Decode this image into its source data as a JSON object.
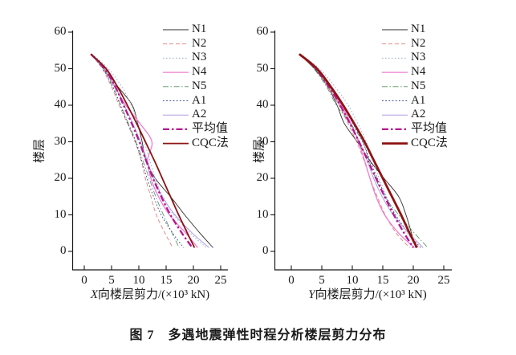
{
  "figure": {
    "caption": "图 7　多遇地震弹性时程分析楼层剪力分布"
  },
  "colors": {
    "text": "#1a1a1a",
    "axis": "#1a1a1a",
    "background": "#ffffff",
    "average_magenta": "#b5188f",
    "cqc_dark_red": "#8f1212"
  },
  "legend": {
    "position": "top-right-inside",
    "entries": [
      {
        "label": "N1",
        "color": "#2e2e2e",
        "width": 0.9,
        "dash": ""
      },
      {
        "label": "N2",
        "color": "#e2807f",
        "width": 0.9,
        "dash": "5,3"
      },
      {
        "label": "N3",
        "color": "#9db9d8",
        "width": 1.1,
        "dash": "1.6,2.4"
      },
      {
        "label": "N4",
        "color": "#ee7fd4",
        "width": 1.3,
        "dash": ""
      },
      {
        "label": "N5",
        "color": "#4d8f5c",
        "width": 0.8,
        "dash": "7,2.5,1.5,2.5"
      },
      {
        "label": "A1",
        "color": "#3c4a9d",
        "width": 0.9,
        "dash": "1.8,2.4"
      },
      {
        "label": "A2",
        "color": "#b49be0",
        "width": 1.0,
        "dash": ""
      },
      {
        "label": "平均值",
        "color": "#b5188f",
        "width": 2.3,
        "dash": "8,3,2.5,3"
      },
      {
        "label": "CQC法",
        "color": "#8f1212",
        "width": 2.0,
        "dash": ""
      }
    ]
  },
  "chart_data": [
    {
      "type": "line",
      "title": "",
      "xlabel_parts": {
        "italic": "X",
        "rest": "向楼层剪力/(×10³ kN)"
      },
      "ylabel": "楼层",
      "xlim": [
        0,
        25
      ],
      "ylim": [
        0,
        60
      ],
      "xticks": [
        "0",
        "5",
        "10",
        "15",
        "20",
        "25"
      ],
      "xtick_values": [
        0,
        5,
        10,
        15,
        20,
        25
      ],
      "yticks": [
        "0",
        "10",
        "20",
        "30",
        "40",
        "50",
        "60"
      ],
      "ytick_values": [
        0,
        10,
        20,
        30,
        40,
        50,
        60
      ],
      "grid": false,
      "floors": [
        54,
        50,
        45,
        40,
        35,
        30,
        25,
        20,
        15,
        10,
        5,
        1
      ],
      "width_override": {
        "CQC法": 1.8
      },
      "series": [
        {
          "name": "N1",
          "values": [
            1.2,
            3.6,
            6.2,
            8.8,
            9.8,
            10.6,
            11.3,
            13.0,
            15.8,
            18.4,
            21.2,
            23.6
          ]
        },
        {
          "name": "N2",
          "values": [
            1.2,
            3.3,
            5.0,
            6.4,
            7.9,
            9.3,
            10.4,
            11.2,
            12.2,
            13.2,
            14.8,
            16.2
          ]
        },
        {
          "name": "N3",
          "values": [
            1.4,
            4.4,
            6.9,
            8.6,
            9.9,
            11.0,
            12.0,
            13.0,
            14.4,
            16.4,
            19.4,
            22.4
          ]
        },
        {
          "name": "N4",
          "values": [
            1.2,
            3.7,
            5.6,
            7.6,
            10.2,
            12.4,
            11.6,
            12.2,
            13.6,
            15.6,
            18.6,
            20.8
          ]
        },
        {
          "name": "N5",
          "values": [
            1.2,
            3.5,
            5.3,
            6.7,
            8.1,
            9.5,
            10.7,
            11.9,
            13.1,
            14.5,
            16.1,
            17.4
          ]
        },
        {
          "name": "A1",
          "values": [
            1.2,
            3.4,
            5.2,
            6.6,
            8.0,
            9.4,
            10.5,
            11.5,
            12.7,
            14.1,
            16.2,
            18.2
          ]
        },
        {
          "name": "A2",
          "values": [
            1.2,
            3.7,
            5.7,
            7.3,
            8.9,
            10.3,
            11.5,
            12.7,
            14.3,
            16.6,
            19.8,
            22.9
          ]
        },
        {
          "name": "平均值",
          "values": [
            1.2,
            3.7,
            5.7,
            7.2,
            8.7,
            10.1,
            11.3,
            12.6,
            14.1,
            15.8,
            17.9,
            19.8
          ]
        },
        {
          "name": "CQC法",
          "values": [
            1.2,
            4.0,
            6.1,
            7.9,
            9.6,
            11.2,
            12.8,
            14.3,
            15.8,
            17.3,
            18.9,
            20.2
          ]
        }
      ]
    },
    {
      "type": "line",
      "title": "",
      "xlabel_parts": {
        "italic": "Y",
        "rest": "向楼层剪力/(×10³ kN)"
      },
      "ylabel": "楼层",
      "xlim": [
        0,
        25
      ],
      "ylim": [
        0,
        60
      ],
      "xticks": [
        "0",
        "5",
        "10",
        "15",
        "20",
        "25"
      ],
      "xtick_values": [
        0,
        5,
        10,
        15,
        20,
        25
      ],
      "yticks": [
        "0",
        "10",
        "20",
        "30",
        "40",
        "50",
        "60"
      ],
      "ytick_values": [
        0,
        10,
        20,
        30,
        40,
        50,
        60
      ],
      "grid": false,
      "floors": [
        54,
        50,
        45,
        40,
        35,
        30,
        25,
        20,
        15,
        10,
        5,
        1
      ],
      "width_override": {
        "CQC法": 2.8
      },
      "series": [
        {
          "name": "N1",
          "values": [
            1.3,
            3.8,
            6.0,
            7.5,
            8.7,
            10.8,
            12.8,
            15.2,
            17.6,
            18.8,
            19.7,
            20.4
          ]
        },
        {
          "name": "N2",
          "values": [
            1.3,
            3.9,
            6.0,
            7.8,
            9.3,
            10.7,
            11.9,
            12.9,
            14.1,
            15.4,
            17.2,
            19.4
          ]
        },
        {
          "name": "N3",
          "values": [
            1.5,
            4.6,
            7.2,
            9.3,
            10.9,
            12.3,
            13.4,
            14.4,
            15.6,
            17.0,
            19.0,
            21.0
          ]
        },
        {
          "name": "N4",
          "values": [
            1.3,
            4.0,
            6.3,
            8.2,
            9.8,
            11.0,
            12.0,
            12.9,
            13.9,
            15.3,
            17.6,
            20.2
          ]
        },
        {
          "name": "N5",
          "values": [
            1.3,
            3.7,
            5.8,
            7.4,
            9.7,
            11.7,
            12.7,
            13.8,
            15.3,
            17.6,
            20.2,
            22.4
          ]
        },
        {
          "name": "A1",
          "values": [
            1.3,
            4.1,
            6.4,
            8.4,
            10.1,
            11.7,
            12.9,
            14.1,
            15.5,
            17.1,
            19.2,
            21.2
          ]
        },
        {
          "name": "A2",
          "values": [
            1.3,
            4.0,
            6.2,
            8.0,
            9.6,
            11.2,
            12.4,
            13.5,
            14.9,
            16.7,
            19.3,
            21.6
          ]
        },
        {
          "name": "平均值",
          "values": [
            1.3,
            4.0,
            6.2,
            8.0,
            9.6,
            11.1,
            12.5,
            13.9,
            15.3,
            16.8,
            18.5,
            20.0
          ]
        },
        {
          "name": "CQC法",
          "values": [
            1.3,
            4.2,
            6.5,
            8.5,
            10.3,
            12.0,
            13.5,
            15.0,
            16.5,
            18.0,
            19.4,
            20.6
          ]
        }
      ]
    }
  ]
}
